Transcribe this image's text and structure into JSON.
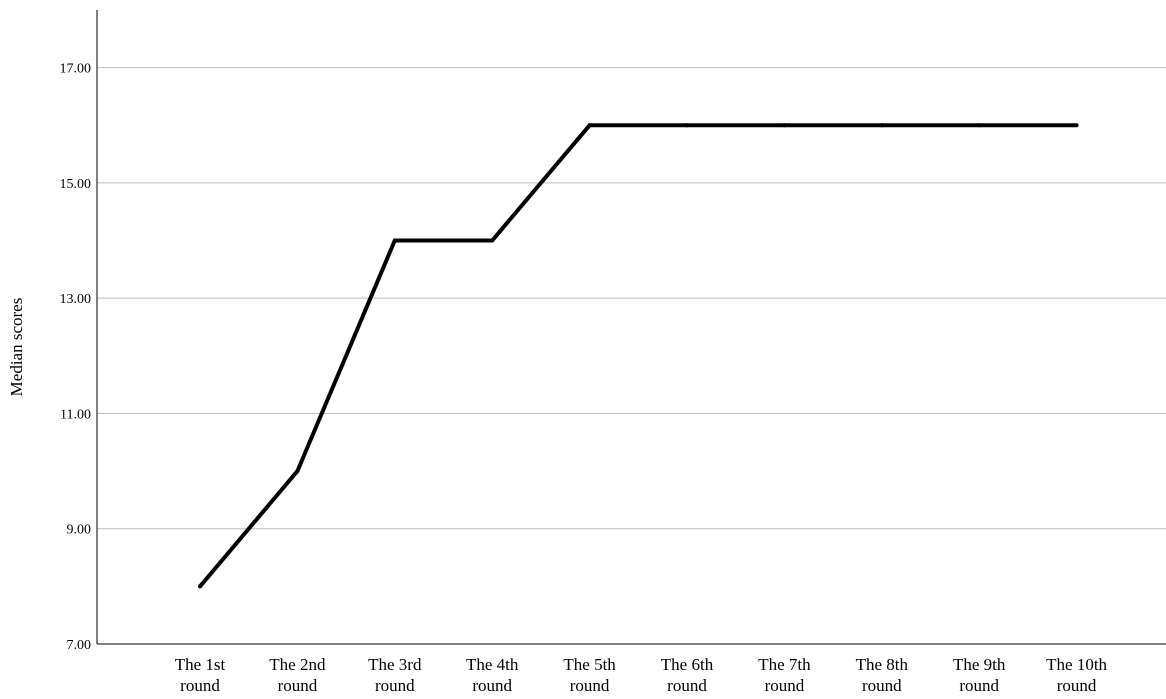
{
  "chart_data": {
    "type": "line",
    "categories": [
      [
        "The 1st",
        "round"
      ],
      [
        "The 2nd",
        "round"
      ],
      [
        "The 3rd",
        "round"
      ],
      [
        "The 4th",
        "round"
      ],
      [
        "The 5th",
        "round"
      ],
      [
        "The 6th",
        "round"
      ],
      [
        "The 7th",
        "round"
      ],
      [
        "The 8th",
        "round"
      ],
      [
        "The 9th",
        "round"
      ],
      [
        "The 10th",
        "round"
      ]
    ],
    "values": [
      8,
      10,
      14,
      14,
      16,
      16,
      16,
      16,
      16,
      16
    ],
    "ylabel": "Median scores",
    "xlabel": "",
    "ylim": [
      7,
      18
    ],
    "yticks": [
      7,
      9,
      11,
      13,
      15,
      17
    ],
    "ytick_labels": [
      "7.00",
      "9.00",
      "11.00",
      "13.00",
      "15.00",
      "17.00"
    ],
    "grid": true,
    "line_color": "#000000",
    "grid_color": "#bdbdbd"
  }
}
